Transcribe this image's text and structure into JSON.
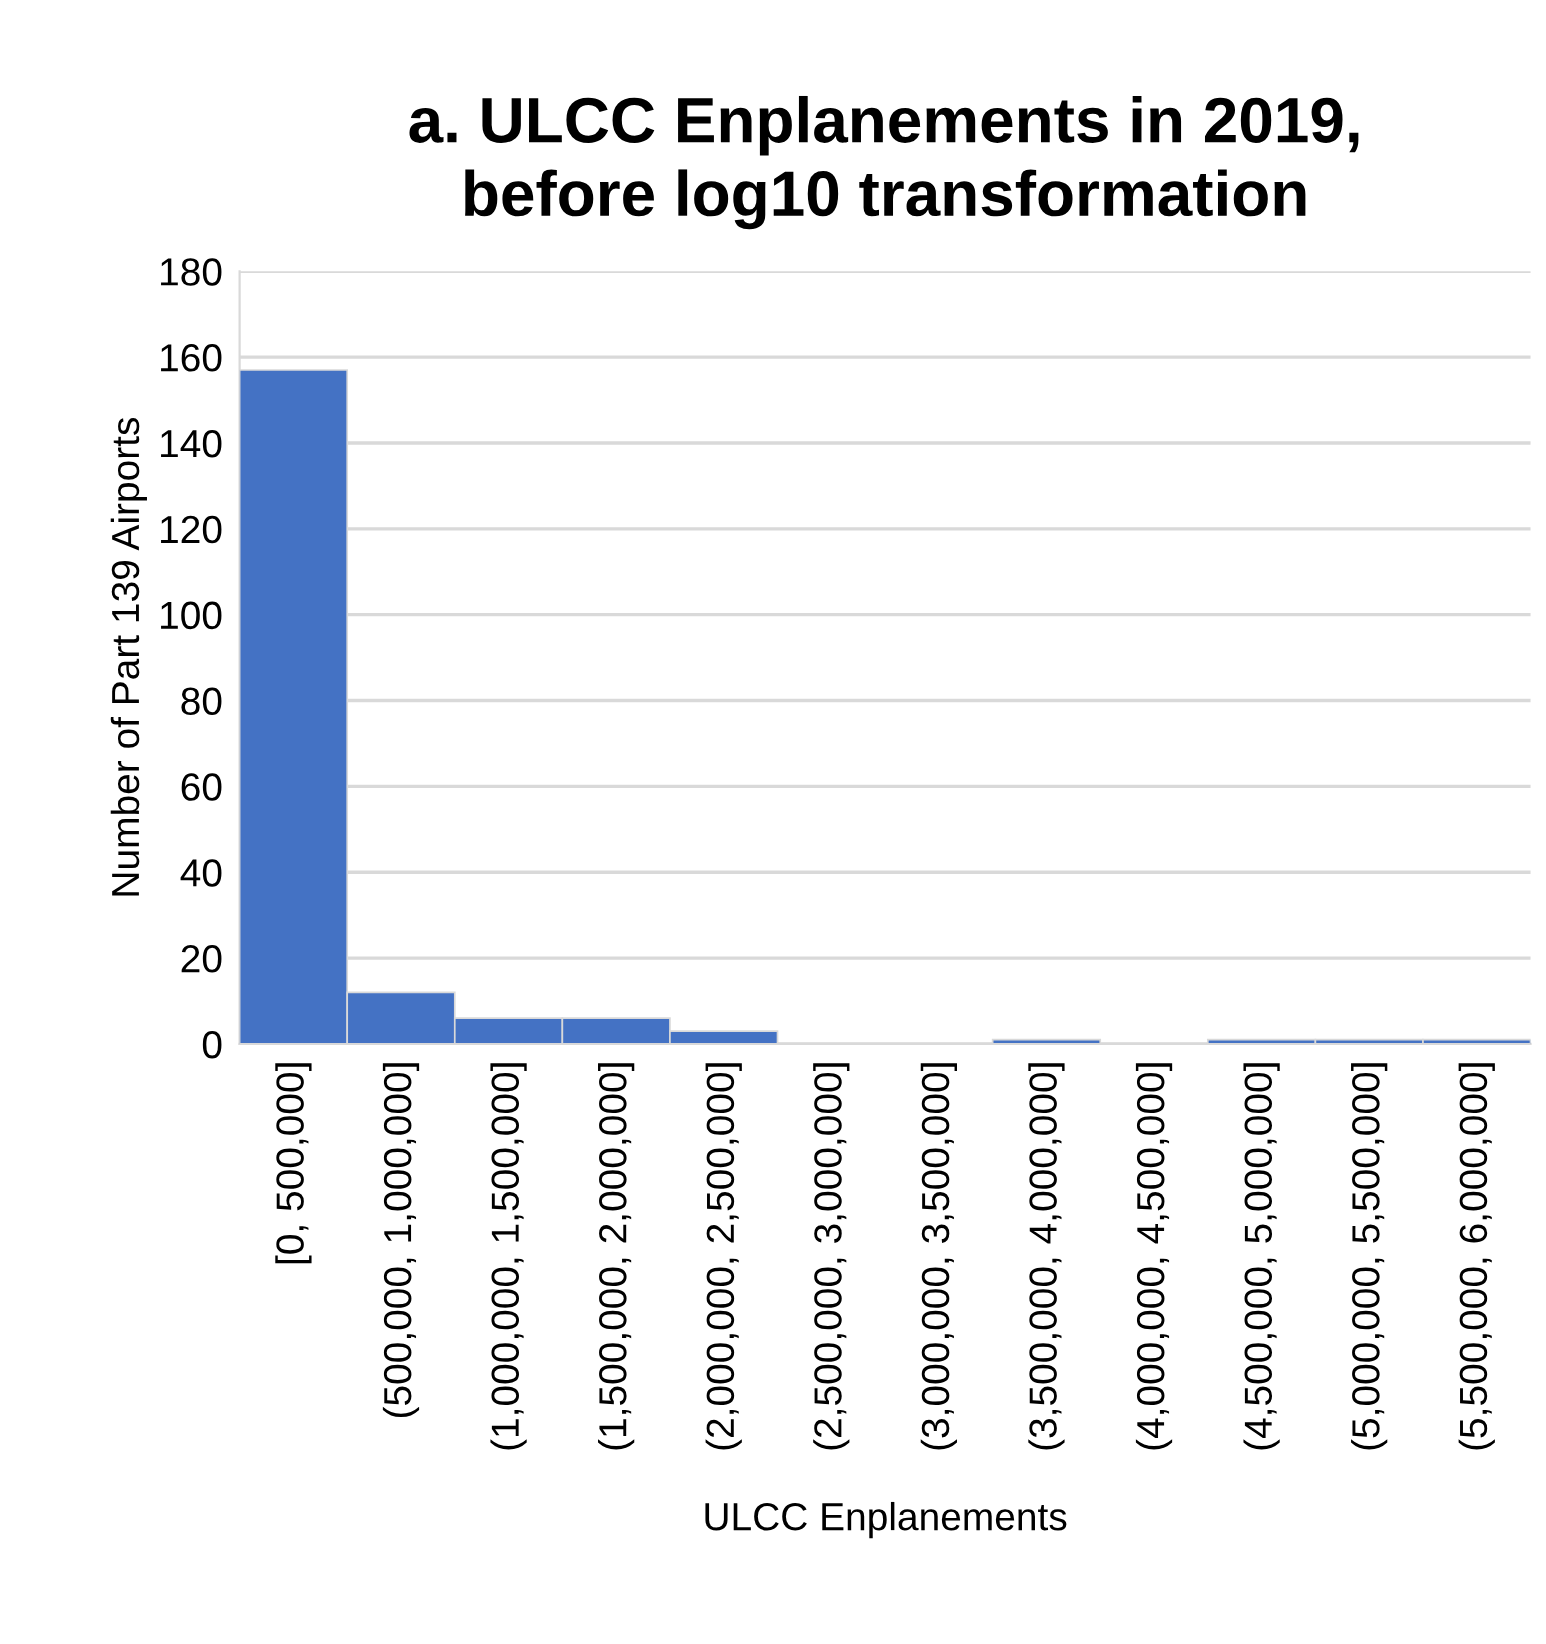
{
  "chart_data": {
    "type": "bar",
    "title": "a. ULCC Enplanements in 2019,\nbefore log10 transformation",
    "xlabel": "ULCC Enplanements",
    "ylabel": "Number of Part 139 Airports",
    "categories": [
      "[0, 500,000]",
      "(500,000, 1,000,000]",
      "(1,000,000, 1,500,000]",
      "(1,500,000, 2,000,000]",
      "(2,000,000, 2,500,000]",
      "(2,500,000, 3,000,000]",
      "(3,000,000, 3,500,000]",
      "(3,500,000, 4,000,000]",
      "(4,000,000, 4,500,000]",
      "(4,500,000, 5,000,000]",
      "(5,000,000, 5,500,000]",
      "(5,500,000, 6,000,000]"
    ],
    "values": [
      157,
      12,
      6,
      6,
      3,
      0,
      0,
      1,
      0,
      1,
      1,
      1
    ],
    "color": "#4472c4",
    "ylim": [
      0,
      180
    ],
    "yticks": [
      0,
      20,
      40,
      60,
      80,
      100,
      120,
      140,
      160,
      180
    ],
    "grid": "y",
    "legend": false
  }
}
